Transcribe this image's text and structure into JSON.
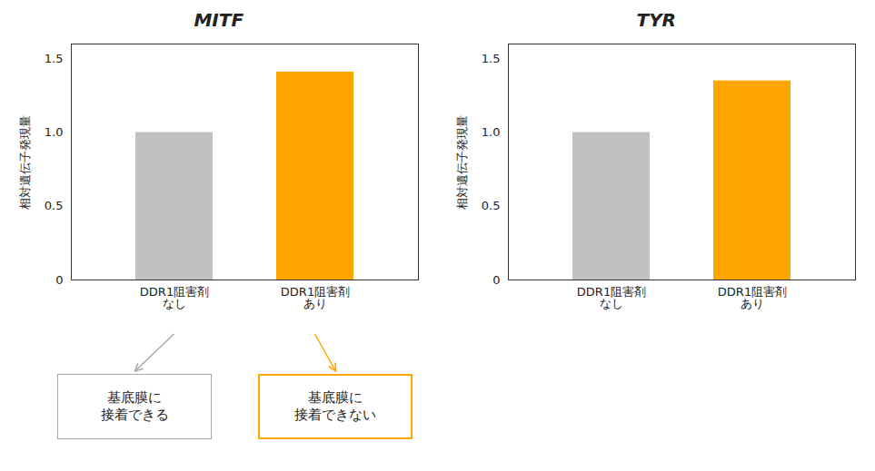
{
  "chart_data": [
    {
      "type": "bar",
      "title": "MITF",
      "categories": [
        "DDR1阻害剤\nなし",
        "DDR1阻害剤\nあり"
      ],
      "values": [
        1.0,
        1.41
      ],
      "colors": [
        "#c0c0c0",
        "#FFA500"
      ],
      "ylabel": "相対遺伝子発現量",
      "ylim": [
        0,
        1.6
      ],
      "yticks": [
        0,
        0.5,
        {
          "value": 1.0,
          "label": "1.0"
        },
        1.5
      ],
      "grid": false,
      "annotations": [
        {
          "text": "基底膜に\n接着できる",
          "color": "#aaaaaa"
        },
        {
          "text": "基底膜に\n接着できない",
          "color": "#FFA500"
        }
      ]
    },
    {
      "type": "bar",
      "title": "TYR",
      "categories": [
        "DDR1阻害剤\nなし",
        "DDR1阻害剤\nあり"
      ],
      "values": [
        1.0,
        1.35
      ],
      "colors": [
        "#c0c0c0",
        "#FFA500"
      ],
      "ylabel": "相対遺伝子発現量",
      "ylim": [
        0,
        1.6
      ],
      "yticks": [
        0,
        0.5,
        {
          "value": 1.0,
          "label": "1.0"
        },
        1.5
      ],
      "grid": false
    }
  ]
}
